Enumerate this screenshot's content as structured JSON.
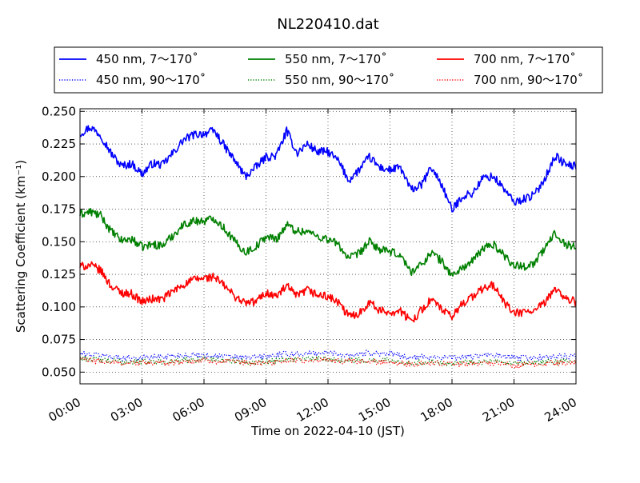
{
  "chart_data": {
    "type": "line",
    "title": "NL220410.dat",
    "xlabel": "Time on 2022-04-10 (JST)",
    "ylabel": "Scattering Coefficient (km⁻¹)",
    "xlim": [
      0,
      24
    ],
    "ylim": [
      0.041,
      0.252
    ],
    "x_ticks": [
      "00:00",
      "03:00",
      "06:00",
      "09:00",
      "12:00",
      "15:00",
      "18:00",
      "21:00",
      "24:00"
    ],
    "y_ticks": [
      "0.050",
      "0.075",
      "0.100",
      "0.125",
      "0.150",
      "0.175",
      "0.200",
      "0.225",
      "0.250"
    ],
    "grid": true,
    "legend_position": "top",
    "series": [
      {
        "name": "450 nm, 7～170˚",
        "color": "#0000ff",
        "style": "solid",
        "x": [
          0,
          0.5,
          1,
          1.5,
          2,
          2.5,
          3,
          3.5,
          4,
          4.5,
          5,
          5.5,
          6,
          6.5,
          7,
          7.5,
          8,
          8.5,
          9,
          9.5,
          10,
          10.5,
          11,
          11.5,
          12,
          12.5,
          13,
          13.5,
          14,
          14.5,
          15,
          15.5,
          16,
          16.5,
          17,
          17.5,
          18,
          18.5,
          19,
          19.5,
          20,
          20.5,
          21,
          21.5,
          22,
          22.5,
          23,
          23.5,
          24
        ],
        "values": [
          0.233,
          0.238,
          0.232,
          0.218,
          0.208,
          0.21,
          0.202,
          0.21,
          0.209,
          0.218,
          0.228,
          0.232,
          0.233,
          0.235,
          0.223,
          0.212,
          0.2,
          0.207,
          0.215,
          0.216,
          0.235,
          0.218,
          0.225,
          0.219,
          0.219,
          0.212,
          0.197,
          0.205,
          0.215,
          0.207,
          0.205,
          0.207,
          0.19,
          0.193,
          0.207,
          0.194,
          0.174,
          0.185,
          0.187,
          0.199,
          0.2,
          0.191,
          0.18,
          0.183,
          0.186,
          0.199,
          0.216,
          0.209,
          0.208
        ]
      },
      {
        "name": "550 nm, 7～170˚",
        "color": "#008000",
        "style": "solid",
        "x": [
          0,
          0.5,
          1,
          1.5,
          2,
          2.5,
          3,
          3.5,
          4,
          4.5,
          5,
          5.5,
          6,
          6.5,
          7,
          7.5,
          8,
          8.5,
          9,
          9.5,
          10,
          10.5,
          11,
          11.5,
          12,
          12.5,
          13,
          13.5,
          14,
          14.5,
          15,
          15.5,
          16,
          16.5,
          17,
          17.5,
          18,
          18.5,
          19,
          19.5,
          20,
          20.5,
          21,
          21.5,
          22,
          22.5,
          23,
          23.5,
          24
        ],
        "values": [
          0.171,
          0.173,
          0.17,
          0.158,
          0.151,
          0.152,
          0.146,
          0.148,
          0.147,
          0.155,
          0.163,
          0.166,
          0.166,
          0.168,
          0.16,
          0.15,
          0.142,
          0.146,
          0.154,
          0.152,
          0.163,
          0.158,
          0.158,
          0.154,
          0.152,
          0.148,
          0.137,
          0.141,
          0.15,
          0.144,
          0.142,
          0.14,
          0.127,
          0.132,
          0.142,
          0.135,
          0.124,
          0.13,
          0.135,
          0.145,
          0.148,
          0.14,
          0.132,
          0.131,
          0.134,
          0.145,
          0.157,
          0.148,
          0.146
        ]
      },
      {
        "name": "700 nm, 7～170˚",
        "color": "#ff0000",
        "style": "solid",
        "x": [
          0,
          0.5,
          1,
          1.5,
          2,
          2.5,
          3,
          3.5,
          4,
          4.5,
          5,
          5.5,
          6,
          6.5,
          7,
          7.5,
          8,
          8.5,
          9,
          9.5,
          10,
          10.5,
          11,
          11.5,
          12,
          12.5,
          13,
          13.5,
          14,
          14.5,
          15,
          15.5,
          16,
          16.5,
          17,
          17.5,
          18,
          18.5,
          19,
          19.5,
          20,
          20.5,
          21,
          21.5,
          22,
          22.5,
          23,
          23.5,
          24
        ],
        "values": [
          0.131,
          0.132,
          0.128,
          0.116,
          0.111,
          0.11,
          0.104,
          0.106,
          0.106,
          0.112,
          0.117,
          0.121,
          0.122,
          0.123,
          0.116,
          0.108,
          0.103,
          0.104,
          0.111,
          0.108,
          0.116,
          0.108,
          0.113,
          0.109,
          0.108,
          0.103,
          0.093,
          0.095,
          0.104,
          0.097,
          0.096,
          0.097,
          0.089,
          0.097,
          0.106,
          0.098,
          0.092,
          0.103,
          0.108,
          0.114,
          0.117,
          0.104,
          0.095,
          0.096,
          0.097,
          0.103,
          0.115,
          0.106,
          0.104
        ]
      },
      {
        "name": "450 nm, 90～170˚",
        "color": "#0000ff",
        "style": "dotted",
        "x": [
          0,
          1,
          2,
          3,
          4,
          5,
          6,
          7,
          8,
          9,
          10,
          11,
          12,
          13,
          14,
          15,
          16,
          17,
          18,
          19,
          20,
          21,
          22,
          23,
          24
        ],
        "values": [
          0.064,
          0.063,
          0.061,
          0.061,
          0.062,
          0.063,
          0.063,
          0.062,
          0.061,
          0.062,
          0.064,
          0.064,
          0.065,
          0.063,
          0.065,
          0.064,
          0.061,
          0.062,
          0.061,
          0.062,
          0.063,
          0.061,
          0.061,
          0.062,
          0.062
        ]
      },
      {
        "name": "550 nm, 90～170˚",
        "color": "#008000",
        "style": "dotted",
        "x": [
          0,
          1,
          2,
          3,
          4,
          5,
          6,
          7,
          8,
          9,
          10,
          11,
          12,
          13,
          14,
          15,
          16,
          17,
          18,
          19,
          20,
          21,
          22,
          23,
          24
        ],
        "values": [
          0.061,
          0.059,
          0.058,
          0.058,
          0.058,
          0.059,
          0.06,
          0.059,
          0.058,
          0.058,
          0.06,
          0.06,
          0.06,
          0.059,
          0.059,
          0.059,
          0.057,
          0.058,
          0.057,
          0.058,
          0.058,
          0.056,
          0.057,
          0.058,
          0.058
        ]
      },
      {
        "name": "700 nm, 90～170˚",
        "color": "#ff0000",
        "style": "dotted",
        "x": [
          0,
          1,
          2,
          3,
          4,
          5,
          6,
          7,
          8,
          9,
          10,
          11,
          12,
          13,
          14,
          15,
          16,
          17,
          18,
          19,
          20,
          21,
          22,
          23,
          24
        ],
        "values": [
          0.06,
          0.058,
          0.057,
          0.057,
          0.057,
          0.058,
          0.059,
          0.058,
          0.057,
          0.057,
          0.059,
          0.059,
          0.059,
          0.058,
          0.058,
          0.058,
          0.056,
          0.057,
          0.056,
          0.057,
          0.057,
          0.055,
          0.056,
          0.057,
          0.057
        ]
      }
    ]
  }
}
